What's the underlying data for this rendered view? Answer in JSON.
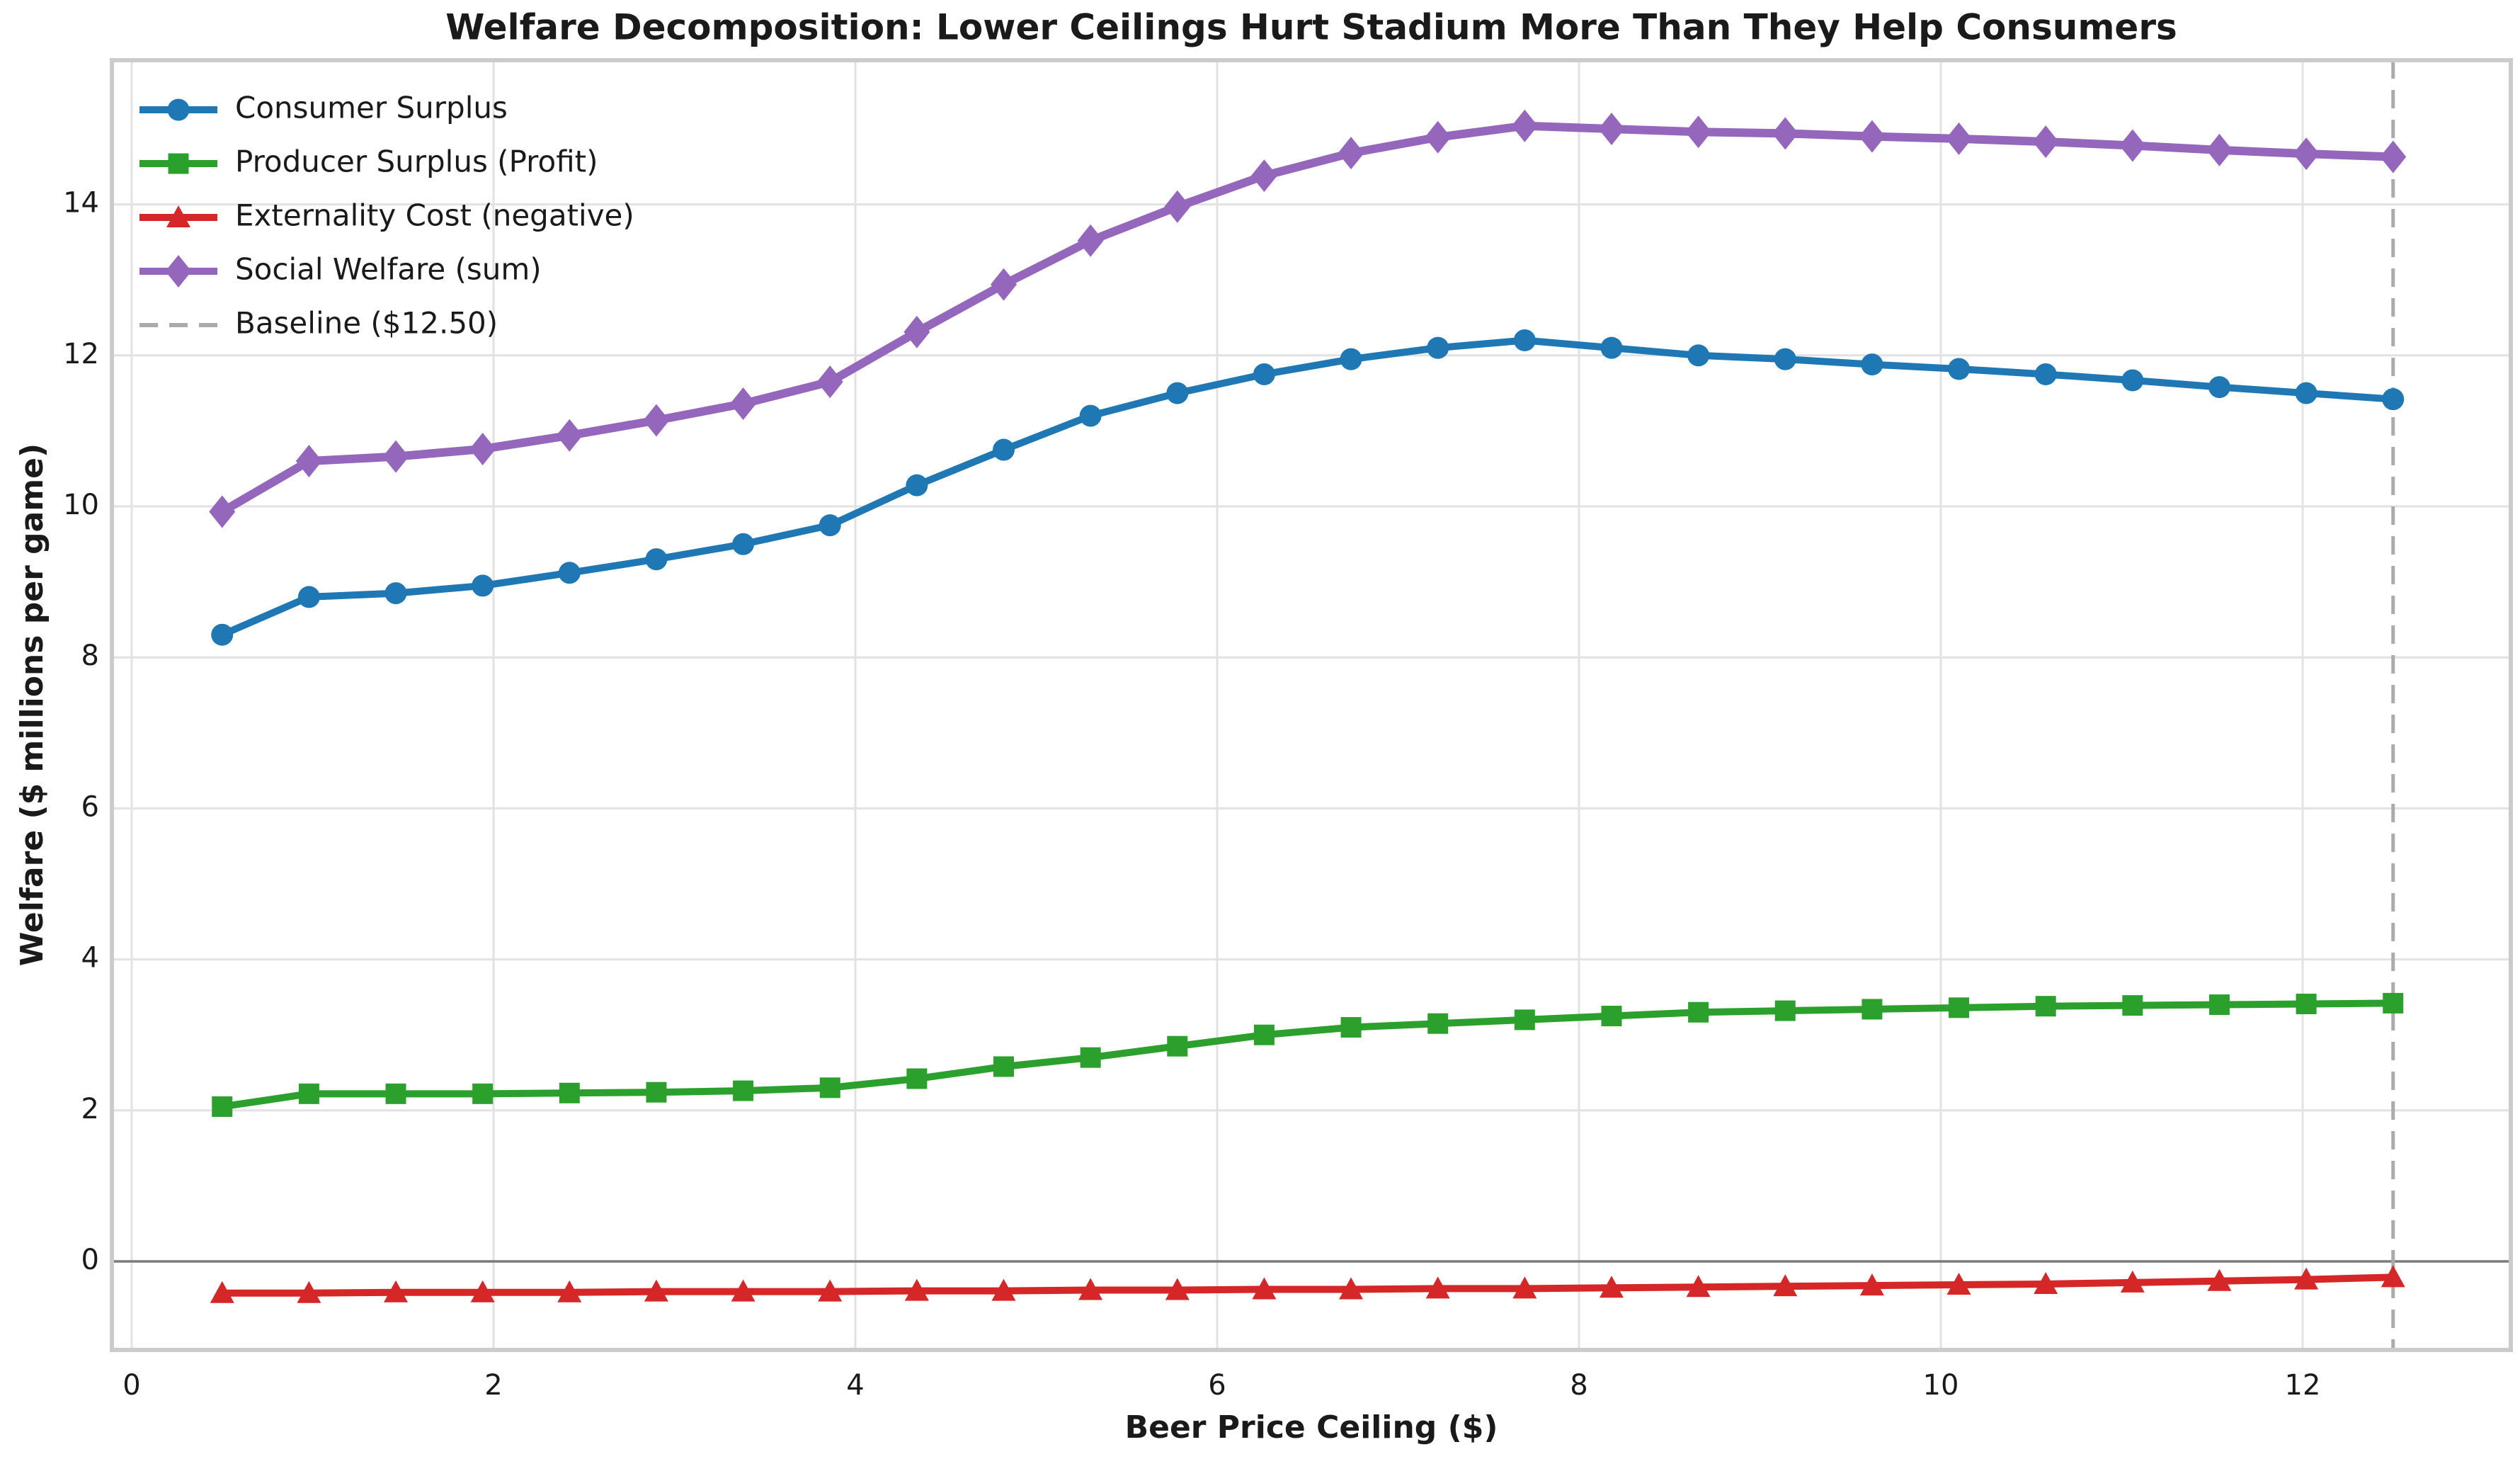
{
  "chart_data": {
    "type": "line",
    "title": "Welfare Decomposition: Lower Ceilings Hurt Stadium More Than They Help Consumers",
    "xlabel": "Beer Price Ceiling ($)",
    "ylabel": "Welfare ($ millions per game)",
    "xlim": [
      -0.11,
      13.15
    ],
    "ylim": [
      -1.17,
      15.91
    ],
    "x_ticks": [
      0,
      2,
      4,
      6,
      8,
      10,
      12
    ],
    "y_ticks": [
      0,
      2,
      4,
      6,
      8,
      10,
      12,
      14
    ],
    "grid": true,
    "legend_position": "upper-left",
    "colors": {
      "grid": "#e2e2e2",
      "spine": "#cbcbcb",
      "zero_line": "#7a7a7a",
      "baseline": "#ababab",
      "text": "#1a1a1a"
    },
    "x": [
      0.5,
      0.98,
      1.46,
      1.94,
      2.42,
      2.9,
      3.38,
      3.86,
      4.34,
      4.82,
      5.3,
      5.78,
      6.26,
      6.74,
      7.22,
      7.7,
      8.18,
      8.66,
      9.14,
      9.62,
      10.1,
      10.58,
      11.06,
      11.54,
      12.02,
      12.5
    ],
    "series": [
      {
        "name": "Consumer Surplus",
        "color": "#1f77b4",
        "marker": "circle",
        "line_width": 10,
        "values": [
          8.3,
          8.8,
          8.85,
          8.95,
          9.12,
          9.3,
          9.5,
          9.75,
          10.28,
          10.75,
          11.2,
          11.5,
          11.75,
          11.95,
          12.1,
          12.2,
          12.1,
          12.0,
          11.95,
          11.88,
          11.82,
          11.75,
          11.67,
          11.58,
          11.5,
          11.42
        ]
      },
      {
        "name": "Producer Surplus (Profit)",
        "color": "#2ca02c",
        "marker": "square",
        "line_width": 10,
        "values": [
          2.05,
          2.22,
          2.22,
          2.22,
          2.23,
          2.24,
          2.26,
          2.3,
          2.42,
          2.58,
          2.7,
          2.85,
          3.0,
          3.1,
          3.15,
          3.2,
          3.25,
          3.3,
          3.32,
          3.34,
          3.36,
          3.38,
          3.39,
          3.4,
          3.41,
          3.42
        ]
      },
      {
        "name": "Externality Cost (negative)",
        "color": "#d62728",
        "marker": "triangle-up",
        "line_width": 10,
        "values": [
          -0.42,
          -0.42,
          -0.41,
          -0.41,
          -0.41,
          -0.4,
          -0.4,
          -0.4,
          -0.39,
          -0.39,
          -0.38,
          -0.38,
          -0.37,
          -0.37,
          -0.36,
          -0.36,
          -0.35,
          -0.34,
          -0.33,
          -0.32,
          -0.31,
          -0.3,
          -0.28,
          -0.26,
          -0.24,
          -0.21
        ]
      },
      {
        "name": "Social Welfare (sum)",
        "color": "#9467bd",
        "marker": "diamond",
        "line_width": 12,
        "values": [
          9.93,
          10.6,
          10.66,
          10.76,
          10.94,
          11.14,
          11.36,
          11.65,
          12.31,
          12.94,
          13.52,
          13.97,
          14.38,
          14.68,
          14.89,
          15.04,
          15.0,
          14.96,
          14.94,
          14.9,
          14.87,
          14.83,
          14.78,
          14.72,
          14.67,
          14.63
        ]
      }
    ],
    "baseline": {
      "label": "Baseline ($12.50)",
      "x": 12.5,
      "style": "dashed"
    }
  }
}
